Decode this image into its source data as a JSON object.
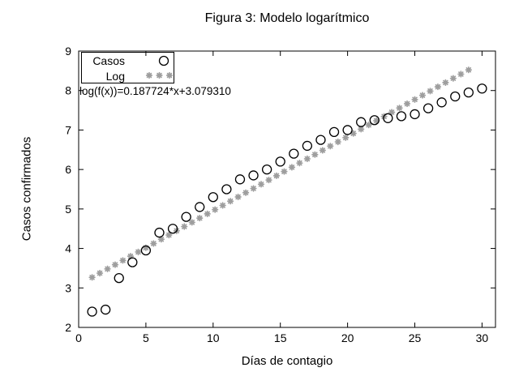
{
  "title": "Figura 3: Modelo logarítmico",
  "colors": {
    "background": "#ffffff",
    "foreground": "#000000",
    "casos_marker": "#000000",
    "log_marker": "#9e9e9e"
  },
  "chart_data": {
    "type": "scatter",
    "title": "Figura 3: Modelo logarítmico",
    "xlabel": "Días de contagio",
    "ylabel": "Casos confirmados",
    "xlim": [
      0,
      31
    ],
    "ylim": [
      2,
      9
    ],
    "xticks": [
      0,
      5,
      10,
      15,
      20,
      25,
      30
    ],
    "yticks": [
      2,
      3,
      4,
      5,
      6,
      7,
      8,
      9
    ],
    "grid": false,
    "annotation": "log(f(x))=0.187724*x+3.079310",
    "legend": {
      "position": "top-left",
      "entries": [
        {
          "label": "Casos",
          "marker": "open-circle",
          "color": "#000000"
        },
        {
          "label": "Log",
          "marker": "asterisk",
          "color": "#9e9e9e"
        }
      ]
    },
    "series": [
      {
        "name": "Casos",
        "marker": "open-circle",
        "color": "#000000",
        "x": [
          1,
          2,
          3,
          4,
          5,
          6,
          7,
          8,
          9,
          10,
          11,
          12,
          13,
          14,
          15,
          16,
          17,
          18,
          19,
          20,
          21,
          22,
          23,
          24,
          25,
          26,
          27,
          28,
          29,
          30
        ],
        "y": [
          2.4,
          2.45,
          3.25,
          3.65,
          3.95,
          4.4,
          4.5,
          4.8,
          5.05,
          5.3,
          5.5,
          5.75,
          5.85,
          6.0,
          6.2,
          6.4,
          6.6,
          6.75,
          6.95,
          7.0,
          7.2,
          7.25,
          7.3,
          7.35,
          7.4,
          7.55,
          7.7,
          7.85,
          7.95,
          8.05
        ]
      },
      {
        "name": "Log",
        "marker": "asterisk",
        "color": "#9e9e9e",
        "model": {
          "slope": 0.187724,
          "intercept": 3.07931,
          "x_range": [
            1,
            29
          ],
          "samples": 50
        }
      }
    ]
  }
}
